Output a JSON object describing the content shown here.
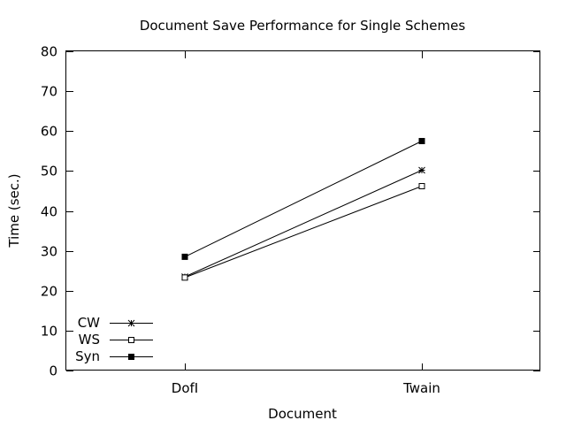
{
  "chart_data": {
    "type": "line",
    "title": "Document Save Performance for Single Schemes",
    "xlabel": "Document",
    "ylabel": "Time (sec.)",
    "categories": [
      "DofI",
      "Twain"
    ],
    "ylim": [
      0,
      80
    ],
    "yticks": [
      0,
      10,
      20,
      30,
      40,
      50,
      60,
      70,
      80
    ],
    "grid": false,
    "legend_position": "bottom-left",
    "series": [
      {
        "name": "CW",
        "marker": "star",
        "values": [
          23.5,
          50.2
        ]
      },
      {
        "name": "WS",
        "marker": "open-square",
        "values": [
          23.3,
          46.2
        ]
      },
      {
        "name": "Syn",
        "marker": "filled-square",
        "values": [
          28.5,
          57.5
        ]
      }
    ],
    "colors": {
      "line": "#000000",
      "background": "#ffffff"
    }
  }
}
